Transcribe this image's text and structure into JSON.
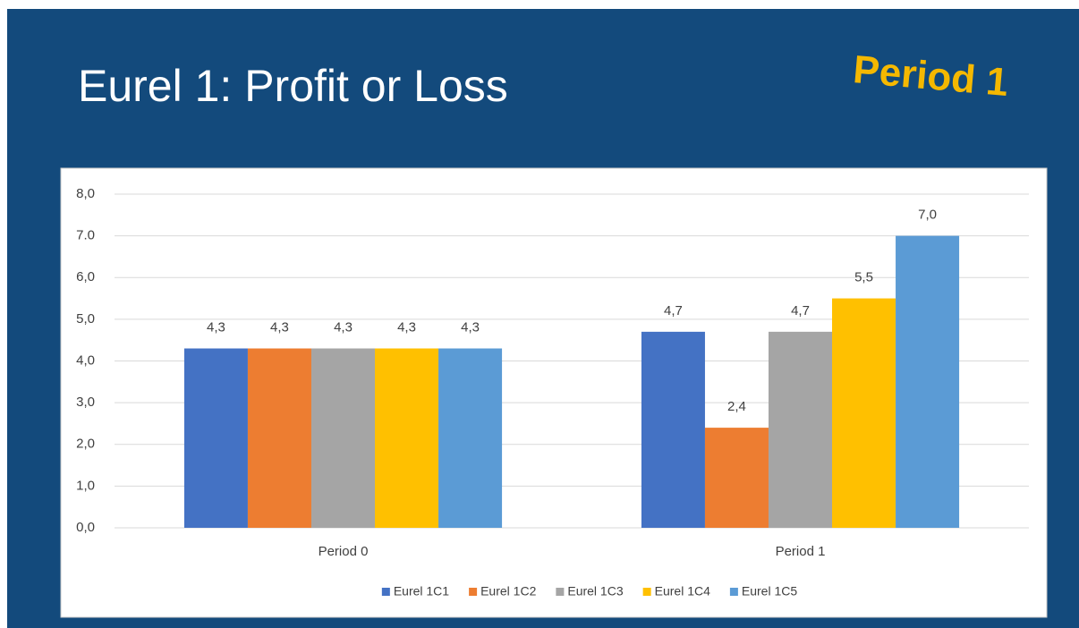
{
  "title": "Eurel 1: Profit or Loss",
  "badge": "Period 1",
  "chart_data": {
    "type": "bar",
    "categories": [
      "Period 0",
      "Period 1"
    ],
    "series": [
      {
        "name": "Eurel 1C1",
        "color": "#4472c4",
        "values": [
          4.3,
          4.7
        ],
        "value_labels": [
          "4,3",
          "4,7"
        ]
      },
      {
        "name": "Eurel 1C2",
        "color": "#ed7d31",
        "values": [
          4.3,
          2.4
        ],
        "value_labels": [
          "4,3",
          "2,4"
        ]
      },
      {
        "name": "Eurel 1C3",
        "color": "#a5a5a5",
        "values": [
          4.3,
          4.7
        ],
        "value_labels": [
          "4,3",
          "4,7"
        ]
      },
      {
        "name": "Eurel 1C4",
        "color": "#ffc000",
        "values": [
          4.3,
          5.5
        ],
        "value_labels": [
          "4,3",
          "5,5"
        ]
      },
      {
        "name": "Eurel 1C5",
        "color": "#5b9bd5",
        "values": [
          4.3,
          7.0
        ],
        "value_labels": [
          "4,3",
          "7,0"
        ]
      }
    ],
    "ylim": [
      0,
      8
    ],
    "yticks": [
      {
        "value": 0,
        "label": "0,0"
      },
      {
        "value": 1,
        "label": "1,0"
      },
      {
        "value": 2,
        "label": "2,0"
      },
      {
        "value": 3,
        "label": "3,0"
      },
      {
        "value": 4,
        "label": "4,0"
      },
      {
        "value": 5,
        "label": "5,0"
      },
      {
        "value": 6,
        "label": "6,0"
      },
      {
        "value": 7,
        "label": "7.0"
      },
      {
        "value": 8,
        "label": "8,0"
      }
    ],
    "grid": true,
    "legend": "bottom"
  }
}
